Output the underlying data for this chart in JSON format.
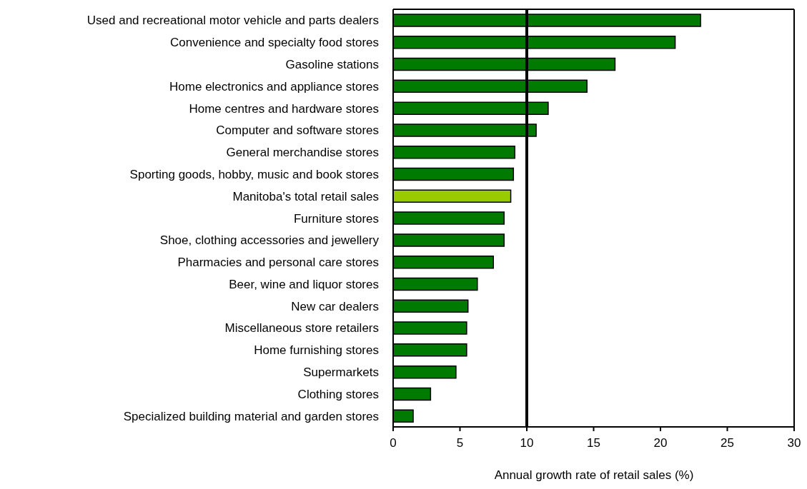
{
  "chart_data": {
    "type": "bar",
    "orientation": "horizontal",
    "xlabel": "Annual growth rate of retail sales (%)",
    "categories": [
      "Used and recreational motor vehicle and parts dealers",
      "Convenience and specialty food stores",
      "Gasoline stations",
      "Home electronics and appliance stores",
      "Home centres and hardware stores",
      "Computer and software stores",
      "General merchandise stores",
      "Sporting goods, hobby, music and book stores",
      "Manitoba's total retail sales",
      "Furniture stores",
      "Shoe, clothing accessories and jewellery",
      "Pharmacies and personal care stores",
      "Beer, wine and liquor stores",
      "New car dealers",
      "Miscellaneous store retailers",
      "Home furnishing stores",
      "Supermarkets",
      "Clothing stores",
      "Specialized building material and garden stores"
    ],
    "values": [
      23.0,
      21.1,
      16.6,
      14.5,
      11.6,
      10.7,
      9.1,
      9.0,
      8.8,
      8.3,
      8.3,
      7.5,
      6.3,
      5.6,
      5.5,
      5.5,
      4.7,
      2.8,
      1.5
    ],
    "colors": [
      "#007a00",
      "#007a00",
      "#007a00",
      "#007a00",
      "#007a00",
      "#007a00",
      "#007a00",
      "#007a00",
      "#99cc00",
      "#007a00",
      "#007a00",
      "#007a00",
      "#007a00",
      "#007a00",
      "#007a00",
      "#007a00",
      "#007a00",
      "#007a00",
      "#007a00"
    ],
    "xlim": [
      0,
      30
    ],
    "xticks": [
      0,
      5,
      10,
      15,
      20,
      25,
      30
    ],
    "ref_lines": [
      {
        "axis": "x",
        "value": 10,
        "color": "#000000"
      }
    ]
  }
}
